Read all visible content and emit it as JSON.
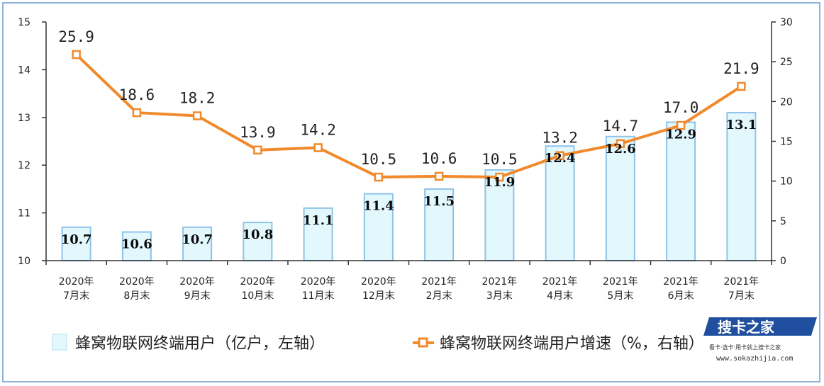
{
  "chart_data": {
    "type": "bar",
    "categories": [
      [
        "2020年",
        "7月末"
      ],
      [
        "2020年",
        "8月末"
      ],
      [
        "2020年",
        "9月末"
      ],
      [
        "2020年",
        "10月末"
      ],
      [
        "2020年",
        "11月末"
      ],
      [
        "2020年",
        "12月末"
      ],
      [
        "2021年",
        "2月末"
      ],
      [
        "2021年",
        "3月末"
      ],
      [
        "2021年",
        "4月末"
      ],
      [
        "2021年",
        "5月末"
      ],
      [
        "2021年",
        "6月末"
      ],
      [
        "2021年",
        "7月末"
      ]
    ],
    "series": [
      {
        "name": "蜂窝物联网终端用户（亿户，左轴）",
        "type": "bar",
        "axis": "left",
        "values": [
          10.7,
          10.6,
          10.7,
          10.8,
          11.1,
          11.4,
          11.5,
          11.9,
          12.4,
          12.6,
          12.9,
          13.1
        ],
        "labels": [
          "10.7",
          "10.6",
          "10.7",
          "10.8",
          "11.1",
          "11.4",
          "11.5",
          "11.9",
          "12.4",
          "12.6",
          "12.9",
          "13.1"
        ]
      },
      {
        "name": "蜂窝物联网终端用户增速（%，右轴）",
        "type": "line",
        "axis": "right",
        "values": [
          25.9,
          18.6,
          18.2,
          13.9,
          14.2,
          10.5,
          10.6,
          10.5,
          13.2,
          14.7,
          17.0,
          21.9
        ],
        "labels": [
          "25.9",
          "18.6",
          "18.2",
          "13.9",
          "14.2",
          "10.5",
          "10.6",
          "10.5",
          "13.2",
          "14.7",
          "17.0",
          "21.9"
        ]
      }
    ],
    "y_left": {
      "range": [
        10,
        15
      ],
      "ticks": [
        "10",
        "11",
        "12",
        "13",
        "14",
        "15"
      ]
    },
    "y_right": {
      "range": [
        0,
        30
      ],
      "ticks": [
        "0",
        "5",
        "10",
        "15",
        "20",
        "25",
        "30"
      ]
    },
    "legend": {
      "position": "bottom",
      "items": [
        "蜂窝物联网终端用户（亿户，左轴）",
        "蜂窝物联网终端用户增速（%，右轴）"
      ]
    },
    "grid": false,
    "colors": {
      "bar_fill": "#e3f8fd",
      "bar_stroke": "#8ec3e8",
      "line": "#f08a2c",
      "marker_fill": "#ffffff",
      "axis": "#333333"
    }
  },
  "watermark": {
    "brand": "搜卡之家",
    "tagline": "看卡·选卡·用卡就上搜卡之家",
    "url": "www.sokazhijia.com"
  }
}
